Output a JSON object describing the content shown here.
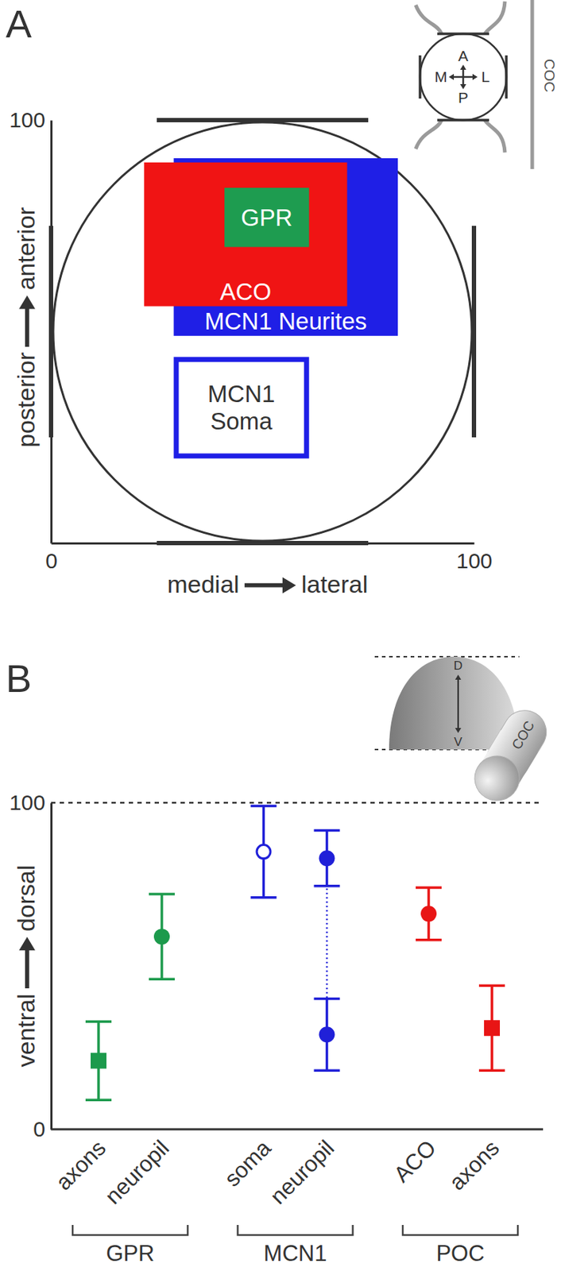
{
  "chart_data": [
    {
      "panel": "A",
      "type": "rect",
      "xlabel": {
        "from": "medial",
        "to": "lateral"
      },
      "ylabel": {
        "from": "posterior",
        "to": "anterior"
      },
      "xlim": [
        0,
        100
      ],
      "ylim": [
        0,
        100
      ],
      "xticks": [
        0,
        100
      ],
      "yticks": [
        100
      ],
      "rects": [
        {
          "label": [
            "MCN1 Neurites"
          ],
          "x": [
            29,
            82
          ],
          "y": [
            49,
            91
          ],
          "color": "#1f1fe6",
          "marker": "filled"
        },
        {
          "label": [
            "ACO"
          ],
          "x": [
            22,
            70
          ],
          "y": [
            56,
            90
          ],
          "color": "#f01414",
          "marker": "filled"
        },
        {
          "label": [
            "GPR"
          ],
          "x": [
            41,
            61
          ],
          "y": [
            70,
            84
          ],
          "color": "#1e9c50",
          "marker": "filled"
        },
        {
          "label": [
            "MCN1",
            "Soma"
          ],
          "x": [
            29,
            61
          ],
          "y": [
            20,
            44
          ],
          "color": "#1f1fe6",
          "marker": "open"
        }
      ],
      "inset": {
        "labels": [
          "A",
          "P",
          "M",
          "L"
        ],
        "nerve": "COC"
      }
    },
    {
      "panel": "B",
      "type": "scatter",
      "ylabel": {
        "from": "ventral",
        "to": "dorsal"
      },
      "ylim": [
        0,
        100
      ],
      "yticks": [
        0,
        100
      ],
      "reference_line": 100,
      "groups": [
        {
          "name": "GPR",
          "color": "#1c9a4c",
          "series": [
            {
              "category": "axons",
              "marker": "square",
              "values": [
                21
              ],
              "errors": [
                12
              ]
            },
            {
              "category": "neuropil",
              "marker": "circle",
              "values": [
                59
              ],
              "errors": [
                13
              ]
            }
          ]
        },
        {
          "name": "MCN1",
          "color": "#2020d8",
          "series": [
            {
              "category": "soma",
              "marker": "open-circle",
              "values": [
                85
              ],
              "errors": [
                14
              ]
            },
            {
              "category": "neuropil",
              "marker": "circle",
              "line_style": "dotted",
              "values": [
                83,
                29
              ],
              "errors": [
                8.5,
                11
              ]
            }
          ]
        },
        {
          "name": "POC",
          "color": "#e81515",
          "series": [
            {
              "category": "ACO",
              "marker": "circle",
              "values": [
                66
              ],
              "errors": [
                8
              ]
            },
            {
              "category": "axons",
              "marker": "square",
              "values": [
                31
              ],
              "errors": [
                13
              ]
            }
          ]
        }
      ],
      "inset": {
        "labels": [
          "D",
          "V"
        ],
        "nerve": "COC"
      }
    }
  ]
}
